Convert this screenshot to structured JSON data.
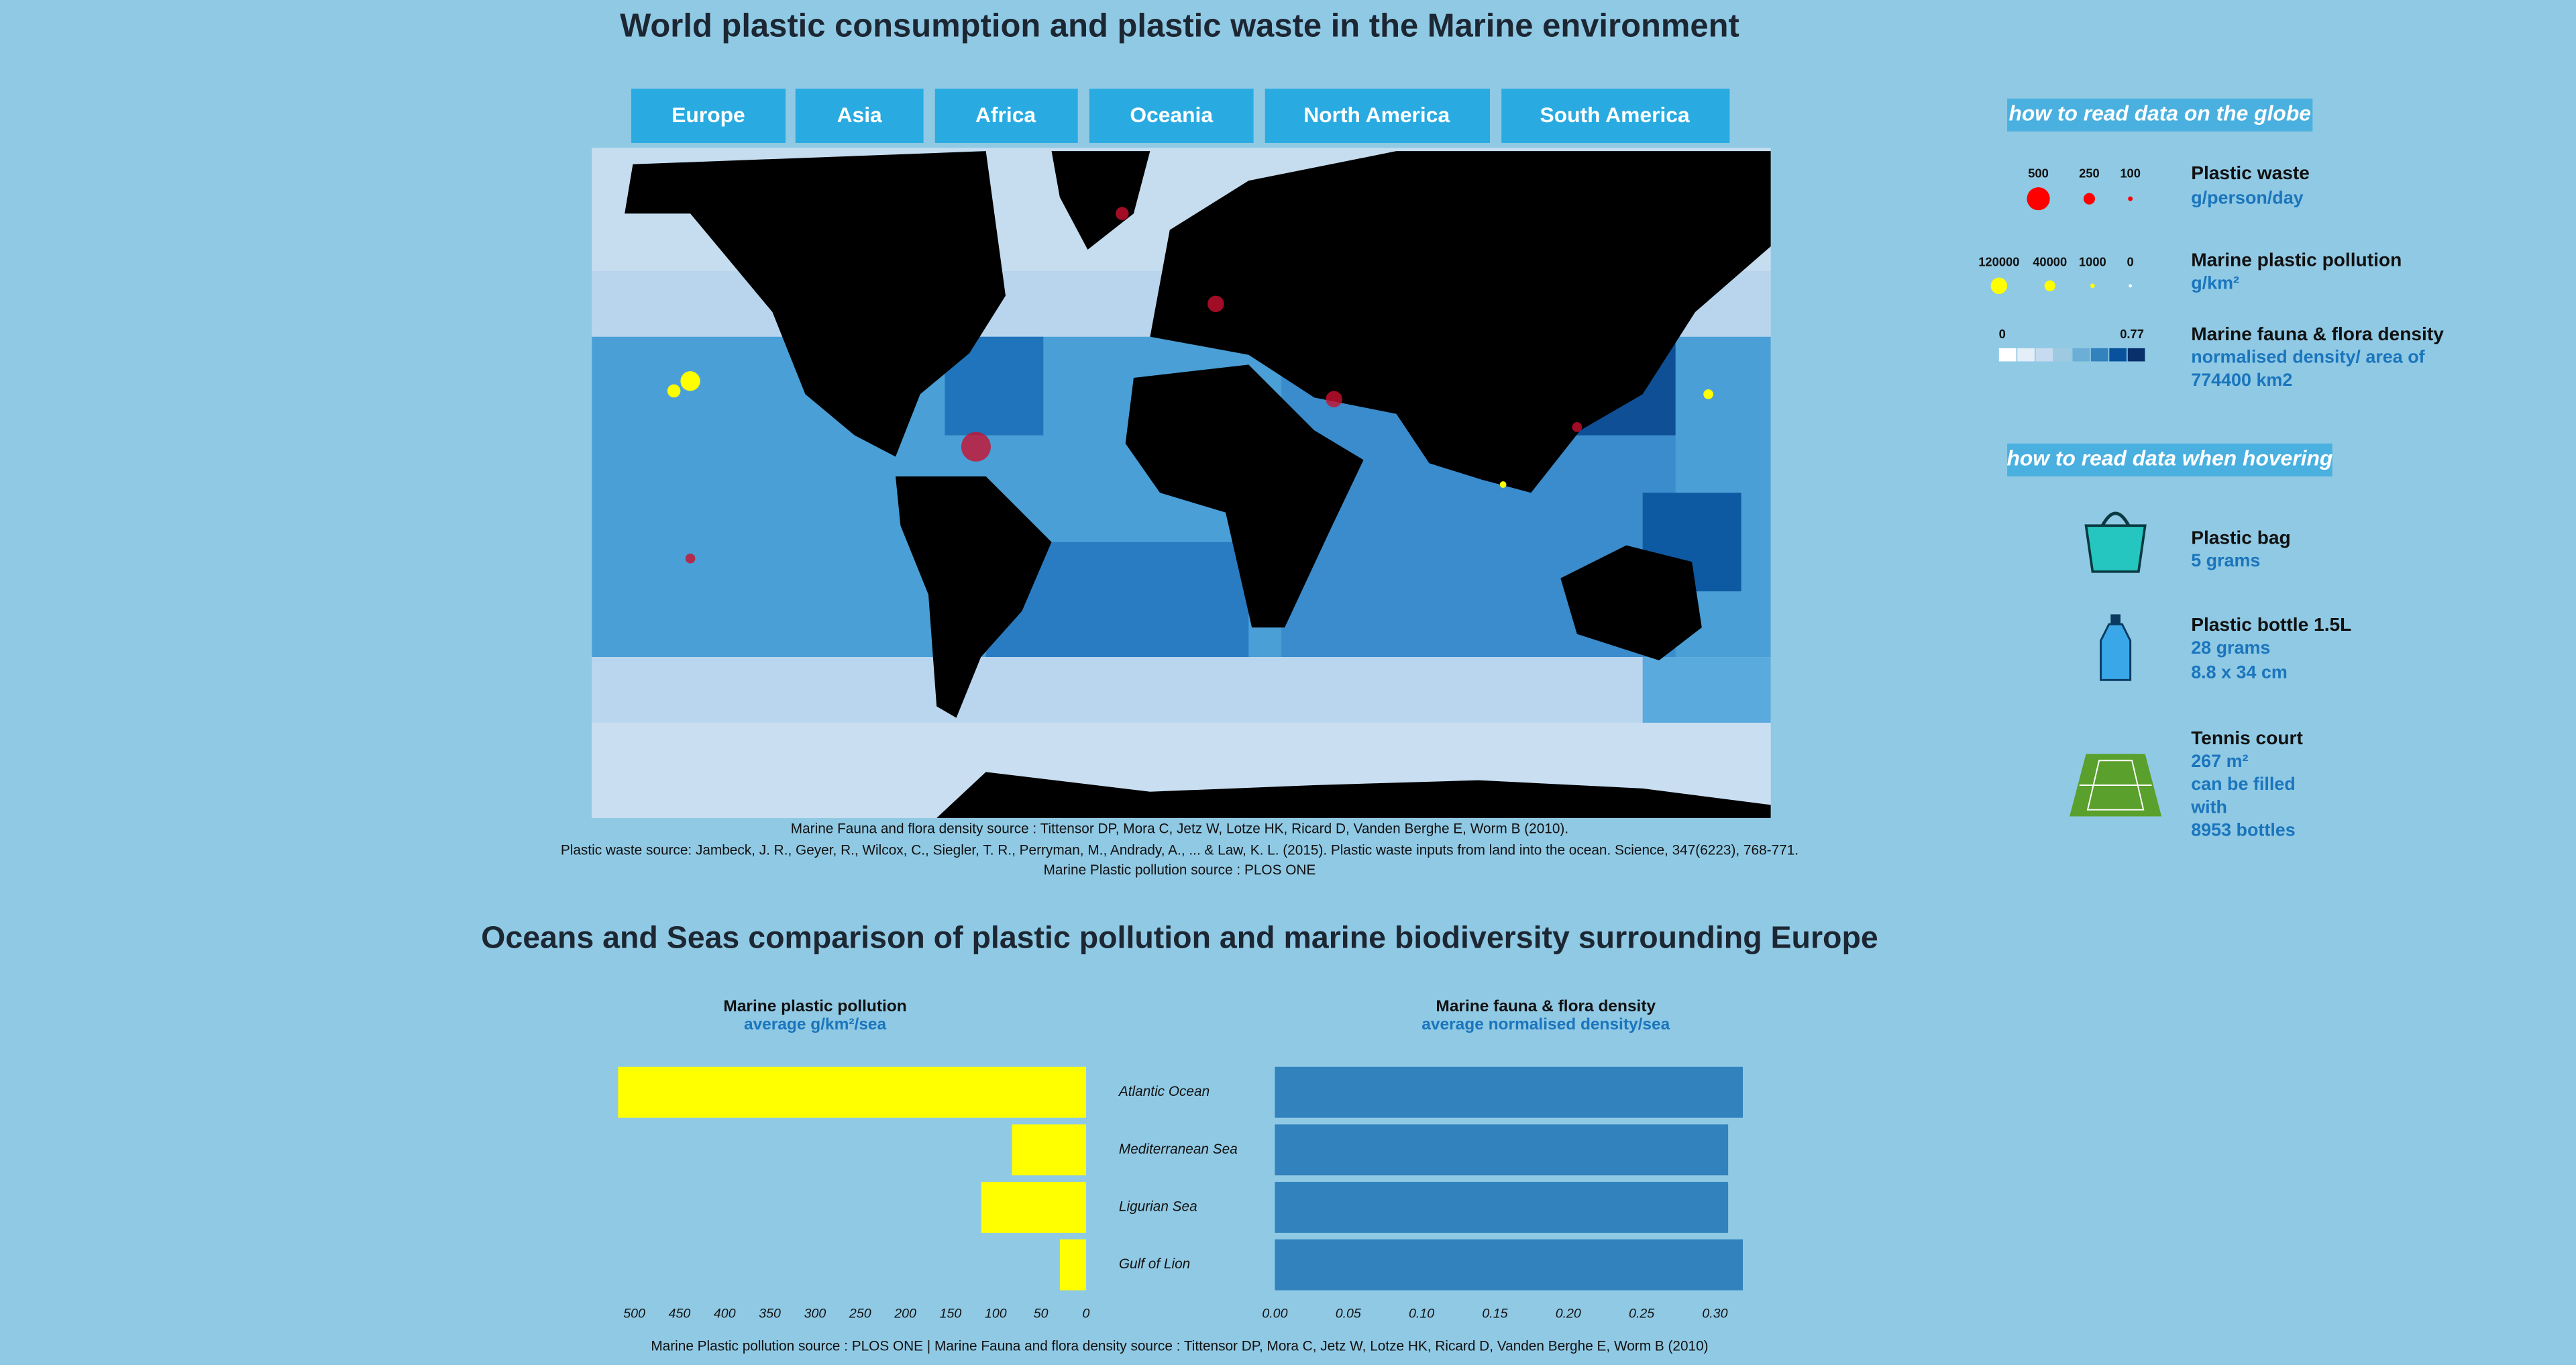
{
  "title": "World plastic consumption and plastic waste in the Marine environment",
  "tabs": [
    "Europe",
    "Asia",
    "Africa",
    "Oceania",
    "North America",
    "South America"
  ],
  "map_sources": [
    "Marine Fauna and flora density source : Tittensor DP, Mora C, Jetz W, Lotze HK, Ricard D, Vanden Berghe E, Worm B (2010).",
    "Plastic waste source: Jambeck, J. R., Geyer, R., Wilcox, C., Siegler, T. R., Perryman, M., Andrady, A., ... & Law, K. L. (2015). Plastic waste inputs from land into the ocean. Science, 347(6223), 768-771.",
    "Marine Plastic pollution source : PLOS ONE"
  ],
  "legend": {
    "globe_heading": "how to read data on the globe",
    "plastic_waste": {
      "title": "Plastic waste",
      "unit": "g/person/day",
      "sizes": [
        500,
        250,
        100
      ],
      "color": "#ff0000"
    },
    "marine_pollution": {
      "title": "Marine plastic pollution",
      "unit": "g/km²",
      "sizes": [
        120000,
        40000,
        1000,
        0
      ],
      "color": "#ffff00"
    },
    "density": {
      "title": "Marine fauna & flora density",
      "unit": [
        "normalised density/ area of",
        "774400 km2"
      ],
      "range": [
        0,
        0.77
      ]
    }
  },
  "hover": {
    "heading": "how to read data when hovering",
    "items": [
      {
        "name": "Plastic bag",
        "details": [
          "5 grams"
        ]
      },
      {
        "name": "Plastic bottle 1.5L",
        "details": [
          "28 grams",
          "8.8 x 34 cm"
        ]
      },
      {
        "name": "Tennis court",
        "details": [
          "267 m²",
          "can be filled",
          "with",
          "8953 bottles"
        ]
      }
    ]
  },
  "section_title": "Oceans and Seas comparison of plastic pollution and marine biodiversity surrounding Europe",
  "chart_data": {
    "type": "bar",
    "orientation": "horizontal",
    "categories": [
      "Atlantic Ocean",
      "Mediterranean Sea",
      "Ligurian Sea",
      "Gulf of Lion"
    ],
    "panels": [
      {
        "title": "Marine plastic pollution",
        "subtitle": "average g/km²/sea",
        "values": [
          518,
          82,
          116,
          29
        ],
        "color": "#ffff00",
        "reversed": true,
        "xlim": [
          0,
          518
        ],
        "xticks": [
          500,
          450,
          400,
          350,
          300,
          250,
          200,
          150,
          100,
          50,
          0
        ]
      },
      {
        "title": "Marine fauna & flora density",
        "subtitle": "average normalised density/sea",
        "values": [
          0.319,
          0.309,
          0.309,
          0.319
        ],
        "color": "#3182bd",
        "reversed": false,
        "xlim": [
          0,
          0.319
        ],
        "xticks": [
          {
            "value": 0,
            "label": "0.00"
          },
          {
            "value": 0.05,
            "label": "0.05"
          },
          {
            "value": 0.1,
            "label": "0.10"
          },
          {
            "value": 0.15,
            "label": "0.15"
          },
          {
            "value": 0.2,
            "label": "0.20"
          },
          {
            "value": 0.25,
            "label": "0.25"
          },
          {
            "value": 0.3,
            "label": "0.30"
          }
        ]
      }
    ]
  },
  "footer": "Marine Plastic pollution source : PLOS ONE | Marine Fauna and flora density source : Tittensor DP, Mora C, Jetz W, Lotze HK, Ricard D, Vanden Berghe E, Worm B (2010)"
}
